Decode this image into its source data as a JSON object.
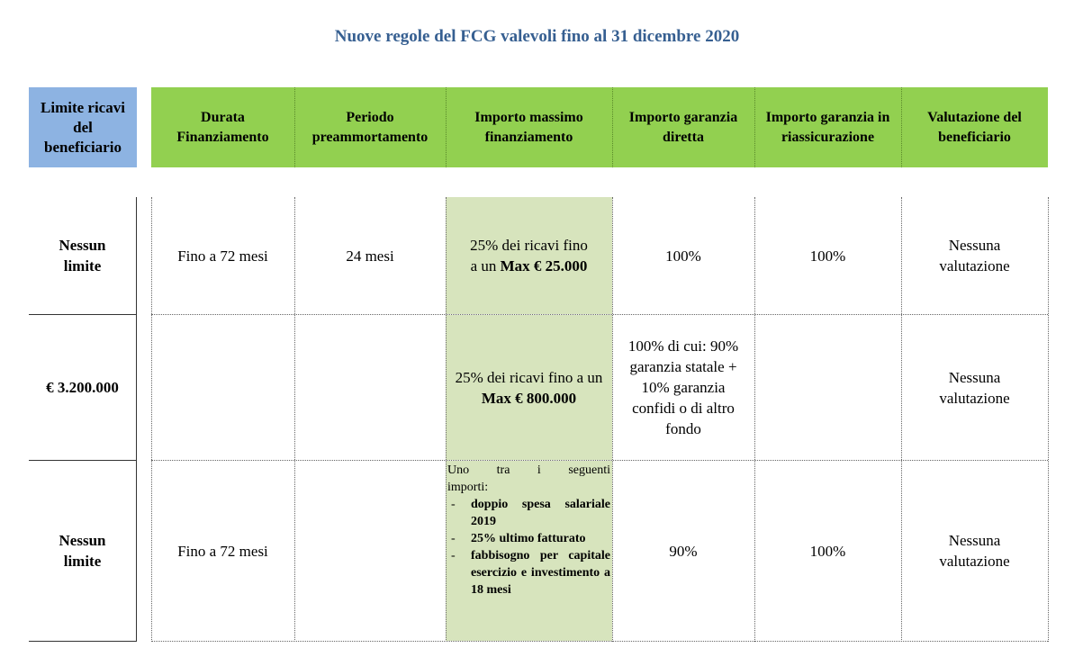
{
  "title": "Nuove regole del FCG valevoli fino al 31 dicembre 2020",
  "headers": {
    "limite": "Limite ricavi del beneficiario",
    "durata": "Durata Finanziamento",
    "periodo": "Periodo preammortamento",
    "importo_massimo": "Importo massimo finanziamento",
    "garanzia_diretta": "Importo garanzia diretta",
    "garanzia_riass": "Importo garanzia in riassicurazione",
    "valutazione": "Valutazione del beneficiario"
  },
  "rows": [
    {
      "limite": "Nessun limite",
      "durata": "Fino a 72 mesi",
      "periodo": "24 mesi",
      "importo_pre": "25% dei ricavi fino a un ",
      "importo_bold": "Max € 25.000",
      "garanzia_diretta": "100%",
      "garanzia_riass": "100%",
      "valutazione": "Nessuna valutazione"
    },
    {
      "limite": "€ 3.200.000",
      "durata": "",
      "periodo": "",
      "importo_pre": "25% dei ricavi fino a un ",
      "importo_bold": "Max € 800.000",
      "garanzia_diretta": "100% di cui: 90% garanzia statale + 10% garanzia confidi o di altro fondo",
      "garanzia_riass": "",
      "valutazione": "Nessuna valutazione"
    },
    {
      "limite": "Nessun limite",
      "durata": "Fino a 72 mesi",
      "periodo": "",
      "importo_intro_a": "Uno tra i seguenti",
      "importo_intro_b": "importi:",
      "importo_list": [
        "doppio spesa salariale 2019",
        "25% ultimo fatturato",
        "fabbisogno per capitale esercizio e investimento a 18 mesi"
      ],
      "list_marker": "-",
      "garanzia_diretta": "90%",
      "garanzia_riass": "100%",
      "valutazione": "Nessuna valutazione"
    }
  ],
  "colors": {
    "title": "#365f91",
    "header_blue": "#8db3e2",
    "header_green": "#92d050",
    "shade_green": "#d7e4bd"
  }
}
